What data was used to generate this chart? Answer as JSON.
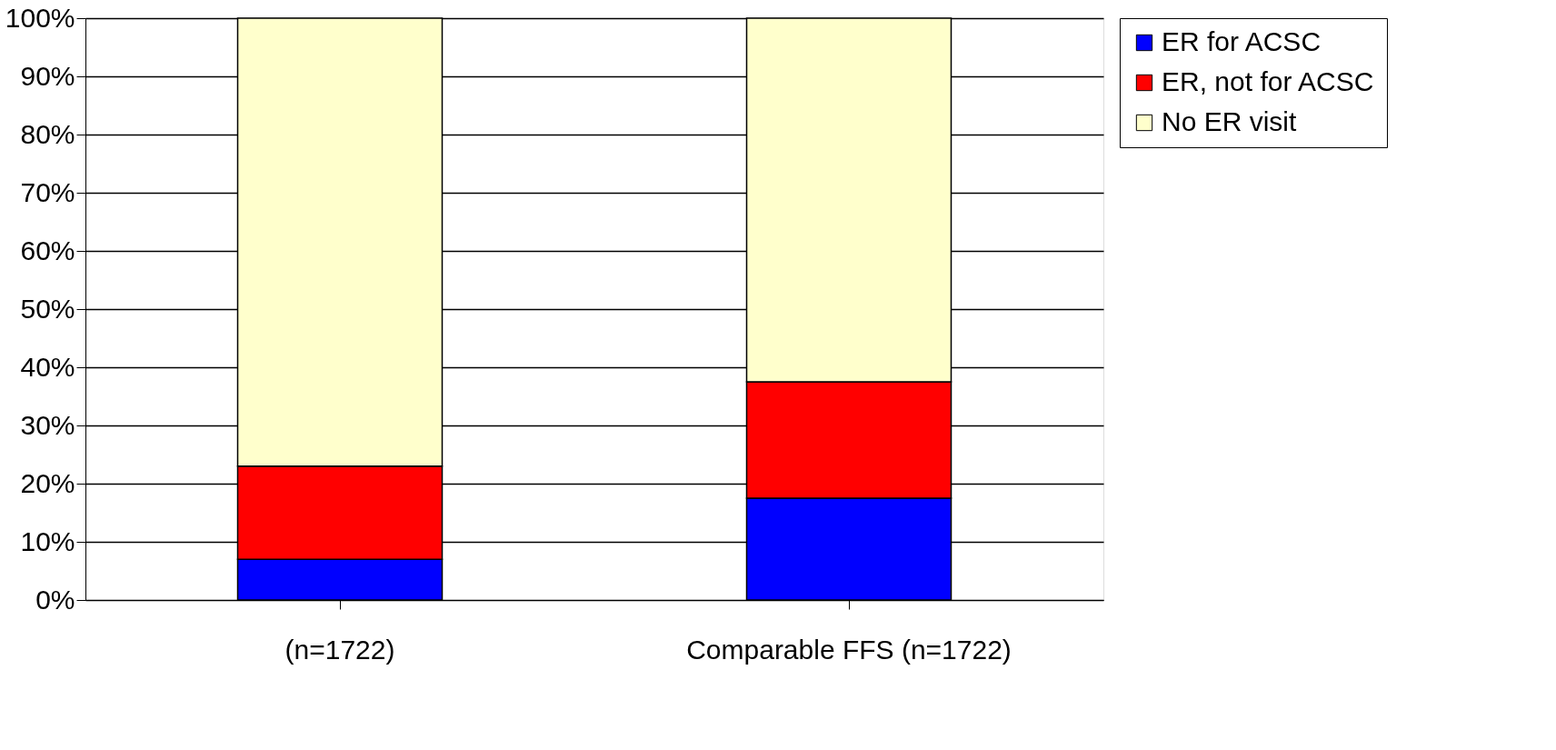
{
  "chart_data": {
    "type": "bar",
    "stacked": true,
    "categories": [
      "(n=1722)",
      "Comparable FFS (n=1722)"
    ],
    "series": [
      {
        "name": "ER for ACSC",
        "color": "#0000ff",
        "values": [
          7,
          17.5
        ]
      },
      {
        "name": "ER, not for ACSC",
        "color": "#ff0000",
        "values": [
          16,
          20
        ]
      },
      {
        "name": "No ER visit",
        "color": "#ffffcc",
        "values": [
          77,
          62.5
        ]
      }
    ],
    "ylim": [
      0,
      100
    ],
    "yticks": [
      {
        "value": 0,
        "label": "0%"
      },
      {
        "value": 10,
        "label": "10%"
      },
      {
        "value": 20,
        "label": "20%"
      },
      {
        "value": 30,
        "label": "30%"
      },
      {
        "value": 40,
        "label": "40%"
      },
      {
        "value": 50,
        "label": "50%"
      },
      {
        "value": 60,
        "label": "60%"
      },
      {
        "value": 70,
        "label": "70%"
      },
      {
        "value": 80,
        "label": "80%"
      },
      {
        "value": 90,
        "label": "90%"
      },
      {
        "value": 100,
        "label": "100%"
      }
    ],
    "grid": "y",
    "legend": "right"
  }
}
